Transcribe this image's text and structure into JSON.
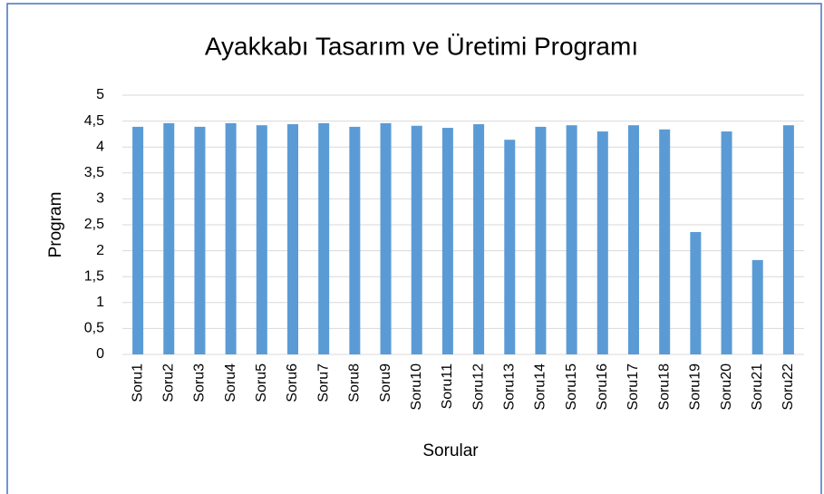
{
  "chart_data": {
    "type": "bar",
    "title": "Ayakkabı Tasarım ve Üretimi Programı",
    "x_label": "Sorular",
    "y_label": "Program",
    "categories": [
      "Soru1",
      "Soru2",
      "Soru3",
      "Soru4",
      "Soru5",
      "Soru6",
      "Soru7",
      "Soru8",
      "Soru9",
      "Soru10",
      "Soru11",
      "Soru12",
      "Soru13",
      "Soru14",
      "Soru15",
      "Soru16",
      "Soru17",
      "Soru18",
      "Soru19",
      "Soru20",
      "Soru21",
      "Soru22"
    ],
    "values": [
      4.39,
      4.46,
      4.39,
      4.46,
      4.42,
      4.44,
      4.46,
      4.39,
      4.46,
      4.41,
      4.37,
      4.44,
      4.14,
      4.39,
      4.42,
      4.3,
      4.42,
      4.34,
      2.36,
      4.3,
      1.82,
      4.42
    ],
    "color": "#5b9bd5",
    "ylim": [
      0,
      5
    ],
    "yticks": [
      0,
      {
        "value": 0.5,
        "label": "0,5"
      },
      1,
      {
        "value": 1.5,
        "label": "1,5"
      },
      2,
      {
        "value": 2.5,
        "label": "2,5"
      },
      3,
      {
        "value": 3.5,
        "label": "3,5"
      },
      4,
      {
        "value": 4.5,
        "label": "4,5"
      },
      5
    ],
    "grid": true
  }
}
